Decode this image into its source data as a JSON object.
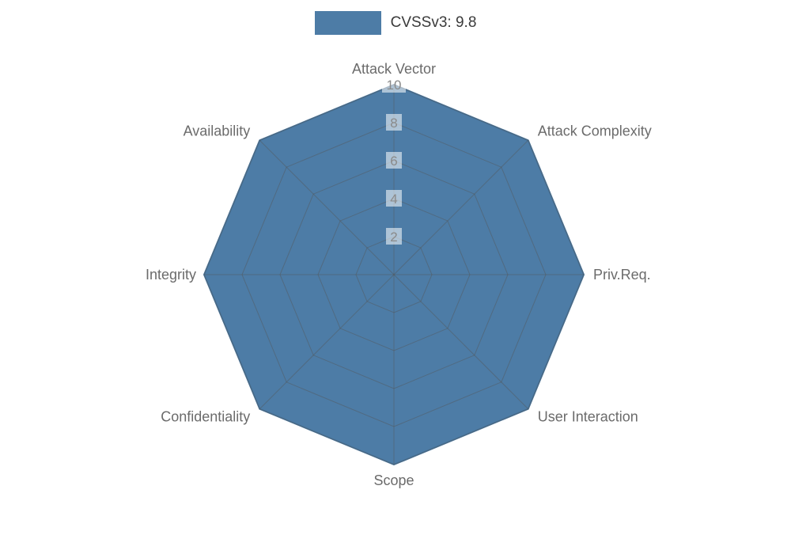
{
  "legend": {
    "label": "CVSSv3: 9.8",
    "swatch_color": "#4d7ca6"
  },
  "chart_data": {
    "type": "radar",
    "title": "CVSSv3: 9.8",
    "categories": [
      "Attack Vector",
      "Attack Complexity",
      "Priv.Req.",
      "User Interaction",
      "Scope",
      "Confidentiality",
      "Integrity",
      "Availability"
    ],
    "series": [
      {
        "name": "CVSSv3: 9.8",
        "values": [
          10,
          10,
          10,
          10,
          10,
          10,
          10,
          10
        ]
      }
    ],
    "ticks": [
      2,
      4,
      6,
      8,
      10
    ],
    "rmax": 10,
    "grid": true,
    "legend_position": "top-center",
    "fill_color": "#4d7ca6",
    "outline_color": "#46759e",
    "grid_color": "#555555",
    "tick_label_color": "#8a8a8a",
    "tick_label_bg": "rgba(255,255,255,0.55)",
    "category_label_color": "#6b6b6b"
  }
}
